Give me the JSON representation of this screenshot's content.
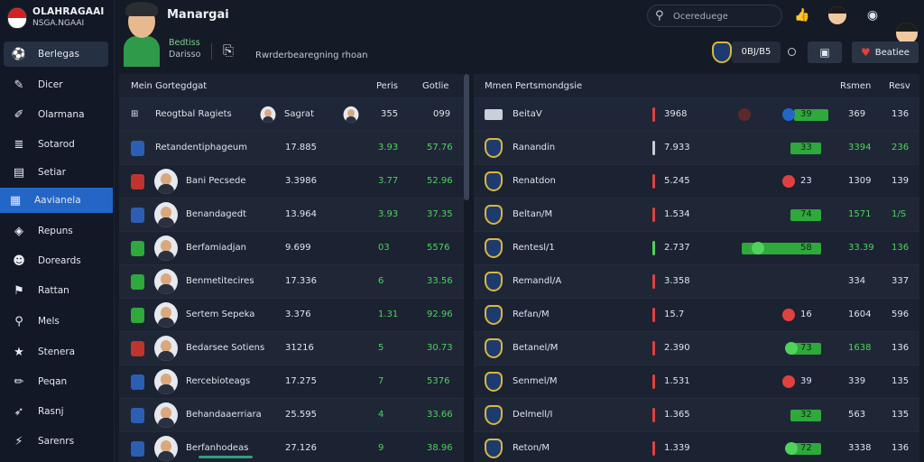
{
  "app": {
    "logo_line1": "OLAHRAGAAI",
    "logo_line2": "NSGA.NGAAI",
    "title": "Manargai"
  },
  "search": {
    "placeholder": "Ocereduege"
  },
  "sidebar": {
    "items": [
      {
        "label": "Berlegas",
        "icon": "club-badge-icon",
        "glyph": "⚽"
      },
      {
        "label": "Dicer",
        "icon": "pin-icon",
        "glyph": "✎"
      },
      {
        "label": "Olarmana",
        "icon": "edit-icon",
        "glyph": "✐"
      },
      {
        "label": "Sotarod",
        "icon": "stripes-icon",
        "glyph": "≣"
      },
      {
        "label": "Setiar",
        "icon": "calendar-icon",
        "glyph": "▤"
      },
      {
        "label": "Aavianela",
        "icon": "grid-icon",
        "glyph": "▦"
      },
      {
        "label": "Repuns",
        "icon": "tag-icon",
        "glyph": "◈"
      },
      {
        "label": "Doreards",
        "icon": "avatar-icon",
        "glyph": "☻"
      },
      {
        "label": "Rattan",
        "icon": "flag-icon",
        "glyph": "⚑"
      },
      {
        "label": "Mels",
        "icon": "search-icon",
        "glyph": "⚲"
      },
      {
        "label": "Stenera",
        "icon": "star-icon",
        "glyph": "★"
      },
      {
        "label": "Peqan",
        "icon": "pencil-icon",
        "glyph": "✏"
      },
      {
        "label": "Rasnj",
        "icon": "rocket-icon",
        "glyph": "➶"
      },
      {
        "label": "Sarenrs",
        "icon": "lightning-icon",
        "glyph": "⚡"
      }
    ]
  },
  "profile": {
    "name": "Bedtiss",
    "subtitle": "Darisso",
    "text": "Rwrderbearegning rhoan",
    "score": "0BJ/B5",
    "button_label": "Beatiee"
  },
  "left_table": {
    "headers": [
      "Mein Gortegdgat",
      "Peris",
      "Gotlie"
    ],
    "highlight_row": {
      "name": "Reogtbal Ragiets",
      "extra": "Sagrat",
      "col1": "355",
      "col2": "099"
    },
    "rows": [
      {
        "name": "Retandentiphageum",
        "value": "17.885",
        "col1": "3.93",
        "col2": "57.76"
      },
      {
        "name": "Bani Pecsede",
        "value": "3.3986",
        "col1": "3.77",
        "col2": "52.96"
      },
      {
        "name": "Benandagedt",
        "value": "13.964",
        "col1": "3.93",
        "col2": "37.35"
      },
      {
        "name": "Berfamiadjan",
        "value": "9.699",
        "col1": "03",
        "col2": "5576"
      },
      {
        "name": "Benmetitecires",
        "value": "17.336",
        "col1": "6",
        "col2": "33.56"
      },
      {
        "name": "Sertem Sepeka",
        "value": "3.376",
        "col1": "1.31",
        "col2": "92.96"
      },
      {
        "name": "Bedarsee Sotiens",
        "value": "31216",
        "col1": "5",
        "col2": "30.73"
      },
      {
        "name": "Rercebioteags",
        "value": "17.275",
        "col1": "7",
        "col2": "5376"
      },
      {
        "name": "Behandaaerriara",
        "value": "25.595",
        "col1": "4",
        "col2": "33.66"
      },
      {
        "name": "Berfanhodeas",
        "value": "27.126",
        "col1": "9",
        "col2": "38.96"
      }
    ]
  },
  "right_table": {
    "headers": [
      "Mmen Pertsmondgsie",
      "Rsmen",
      "Resv"
    ],
    "highlight_row": {
      "name": "BeitaV",
      "value": "3968",
      "bar": "39",
      "col1": "369",
      "col2": "136"
    },
    "rows": [
      {
        "name": "Ranandin",
        "value": "7.933",
        "bar": "33",
        "col1": "3394",
        "col2": "236"
      },
      {
        "name": "Renatdon",
        "value": "5.245",
        "bar": "23",
        "col1": "1309",
        "col2": "139"
      },
      {
        "name": "Beltan/M",
        "value": "1.534",
        "bar": "74",
        "col1": "1571",
        "col2": "1/S"
      },
      {
        "name": "Rentesl/1",
        "value": "2.737",
        "bar": "58",
        "col1": "33.39",
        "col2": "136"
      },
      {
        "name": "Remandl/A",
        "value": "3.358",
        "bar": "",
        "col1": "334",
        "col2": "337"
      },
      {
        "name": "Refan/M",
        "value": "15.7",
        "bar": "16",
        "col1": "1604",
        "col2": "596"
      },
      {
        "name": "Betanel/M",
        "value": "2.390",
        "bar": "73",
        "col1": "1638",
        "col2": "136"
      },
      {
        "name": "Senmel/M",
        "value": "1.531",
        "bar": "39",
        "col1": "339",
        "col2": "135"
      },
      {
        "name": "Delmell/I",
        "value": "1.365",
        "bar": "32",
        "col1": "563",
        "col2": "135"
      },
      {
        "name": "Reton/M",
        "value": "1.339",
        "bar": "72",
        "col1": "3338",
        "col2": "136"
      }
    ]
  },
  "colors": {
    "accent": "#2466c6",
    "positive": "#4fd35b",
    "bar": "#2fa83c",
    "negative": "#e0413f",
    "panel": "#1b2232"
  }
}
